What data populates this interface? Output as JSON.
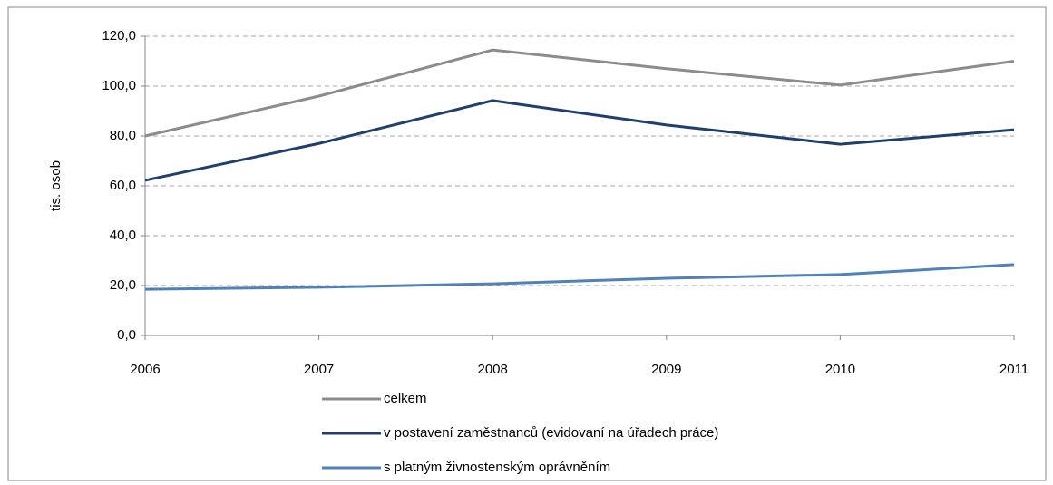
{
  "chart_data": {
    "type": "line",
    "y_label": "tis. osob",
    "categories": [
      "2006",
      "2007",
      "2008",
      "2009",
      "2010",
      "2011"
    ],
    "series": [
      {
        "name": "celkem",
        "color": "#8c8c8c",
        "values": [
          80.0,
          96.0,
          114.5,
          107.0,
          100.4,
          110.0
        ]
      },
      {
        "name": "v postavení zaměstnanců (evidovaní na úřadech práce)",
        "color": "#1f3f6e",
        "values": [
          62.2,
          77.0,
          94.2,
          84.4,
          76.7,
          82.5
        ]
      },
      {
        "name": "s platným živnostenským oprávněním",
        "color": "#4f81bd",
        "values": [
          18.5,
          19.3,
          20.7,
          22.9,
          24.4,
          28.4
        ]
      }
    ],
    "ylim": [
      0,
      120
    ],
    "yticks": [
      {
        "value": 0,
        "label": "0,0"
      },
      {
        "value": 20,
        "label": "20,0"
      },
      {
        "value": 40,
        "label": "40,0"
      },
      {
        "value": 60,
        "label": "60,0"
      },
      {
        "value": 80,
        "label": "80,0"
      },
      {
        "value": 100,
        "label": "100,0"
      },
      {
        "value": 120,
        "label": "120,0"
      }
    ],
    "grid": true,
    "legend": "bottom"
  }
}
